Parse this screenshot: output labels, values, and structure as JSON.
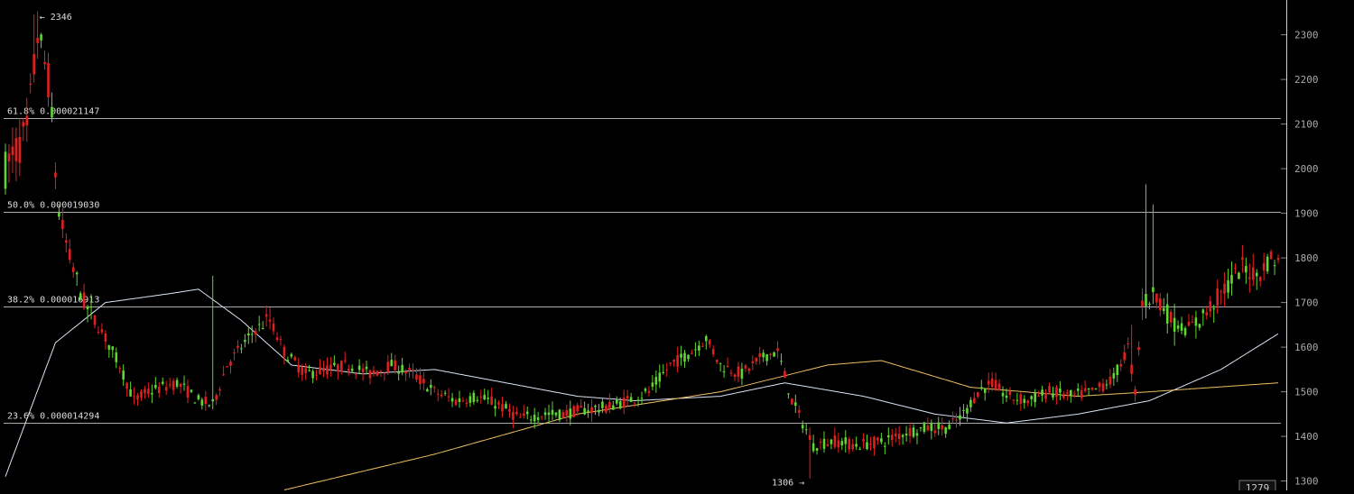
{
  "chart_data": {
    "type": "candlestick",
    "ylim": [
      1279,
      2378
    ],
    "y_ticks": [
      1300,
      1400,
      1500,
      1600,
      1700,
      1800,
      1900,
      2000,
      2100,
      2200,
      2300
    ],
    "current_price_label": "1279",
    "colors": {
      "up": "#5fd632",
      "down": "#e02020",
      "fib_line": "#c8c8c8",
      "ma_short": "#d8e4f4",
      "ma_long": "#f0c060",
      "axis_text": "#aaaaaa",
      "label_text": "#dddddd"
    },
    "annotations": [
      {
        "text": "← 2346",
        "candle": 8,
        "price": 2346,
        "side": "right",
        "anchor": "high"
      },
      {
        "text": "1306 →",
        "candle": 225,
        "price": 1306,
        "side": "left",
        "anchor": "low"
      }
    ],
    "fib_levels": [
      {
        "label": "61.8% 0.000021147",
        "price": 2113
      },
      {
        "label": "50.0% 0.000019030",
        "price": 1903
      },
      {
        "label": "38.2% 0.000016913",
        "price": 1692
      },
      {
        "label": "23.6% 0.000014294",
        "price": 1431
      }
    ],
    "candle_keyframes": [
      [
        0,
        2000
      ],
      [
        6,
        2080
      ],
      [
        9,
        2300
      ],
      [
        12,
        2200
      ],
      [
        15,
        1900
      ],
      [
        18,
        1800
      ],
      [
        22,
        1700
      ],
      [
        28,
        1620
      ],
      [
        32,
        1560
      ],
      [
        36,
        1480
      ],
      [
        40,
        1500
      ],
      [
        48,
        1520
      ],
      [
        54,
        1480
      ],
      [
        58,
        1470
      ],
      [
        62,
        1560
      ],
      [
        66,
        1600
      ],
      [
        70,
        1640
      ],
      [
        74,
        1660
      ],
      [
        78,
        1590
      ],
      [
        84,
        1540
      ],
      [
        90,
        1550
      ],
      [
        96,
        1560
      ],
      [
        102,
        1540
      ],
      [
        108,
        1560
      ],
      [
        114,
        1540
      ],
      [
        120,
        1500
      ],
      [
        126,
        1480
      ],
      [
        132,
        1490
      ],
      [
        138,
        1470
      ],
      [
        144,
        1440
      ],
      [
        150,
        1450
      ],
      [
        156,
        1450
      ],
      [
        162,
        1460
      ],
      [
        168,
        1465
      ],
      [
        174,
        1480
      ],
      [
        180,
        1500
      ],
      [
        186,
        1560
      ],
      [
        192,
        1590
      ],
      [
        196,
        1620
      ],
      [
        200,
        1560
      ],
      [
        206,
        1540
      ],
      [
        212,
        1580
      ],
      [
        216,
        1590
      ],
      [
        220,
        1480
      ],
      [
        226,
        1380
      ],
      [
        232,
        1390
      ],
      [
        238,
        1380
      ],
      [
        246,
        1390
      ],
      [
        252,
        1410
      ],
      [
        258,
        1420
      ],
      [
        264,
        1420
      ],
      [
        268,
        1450
      ],
      [
        272,
        1500
      ],
      [
        276,
        1520
      ],
      [
        280,
        1490
      ],
      [
        286,
        1480
      ],
      [
        292,
        1500
      ],
      [
        298,
        1490
      ],
      [
        304,
        1500
      ],
      [
        310,
        1530
      ],
      [
        314,
        1600
      ],
      [
        316,
        1500
      ],
      [
        318,
        1700
      ],
      [
        322,
        1720
      ],
      [
        326,
        1660
      ],
      [
        330,
        1640
      ],
      [
        334,
        1660
      ],
      [
        338,
        1700
      ],
      [
        342,
        1740
      ],
      [
        346,
        1780
      ],
      [
        350,
        1760
      ],
      [
        354,
        1800
      ],
      [
        356,
        1790
      ]
    ],
    "spikes": [
      {
        "candle": 8,
        "high": 2346
      },
      {
        "candle": 225,
        "low": 1306
      },
      {
        "candle": 58,
        "high": 1760
      },
      {
        "candle": 319,
        "high": 1965
      },
      {
        "candle": 321,
        "high": 1920
      },
      {
        "candle": 315,
        "high": 1650
      }
    ],
    "ma_short_points": [
      [
        0,
        1310
      ],
      [
        14,
        1610
      ],
      [
        28,
        1700
      ],
      [
        46,
        1720
      ],
      [
        54,
        1730
      ],
      [
        66,
        1660
      ],
      [
        80,
        1560
      ],
      [
        100,
        1540
      ],
      [
        120,
        1550
      ],
      [
        140,
        1520
      ],
      [
        160,
        1490
      ],
      [
        176,
        1480
      ],
      [
        200,
        1490
      ],
      [
        218,
        1520
      ],
      [
        240,
        1490
      ],
      [
        260,
        1450
      ],
      [
        280,
        1430
      ],
      [
        300,
        1450
      ],
      [
        320,
        1480
      ],
      [
        340,
        1550
      ],
      [
        356,
        1630
      ]
    ],
    "ma_long_points": [
      [
        78,
        1280
      ],
      [
        120,
        1360
      ],
      [
        160,
        1450
      ],
      [
        200,
        1500
      ],
      [
        230,
        1560
      ],
      [
        245,
        1570
      ],
      [
        270,
        1510
      ],
      [
        300,
        1490
      ],
      [
        320,
        1500
      ],
      [
        356,
        1520
      ]
    ]
  }
}
